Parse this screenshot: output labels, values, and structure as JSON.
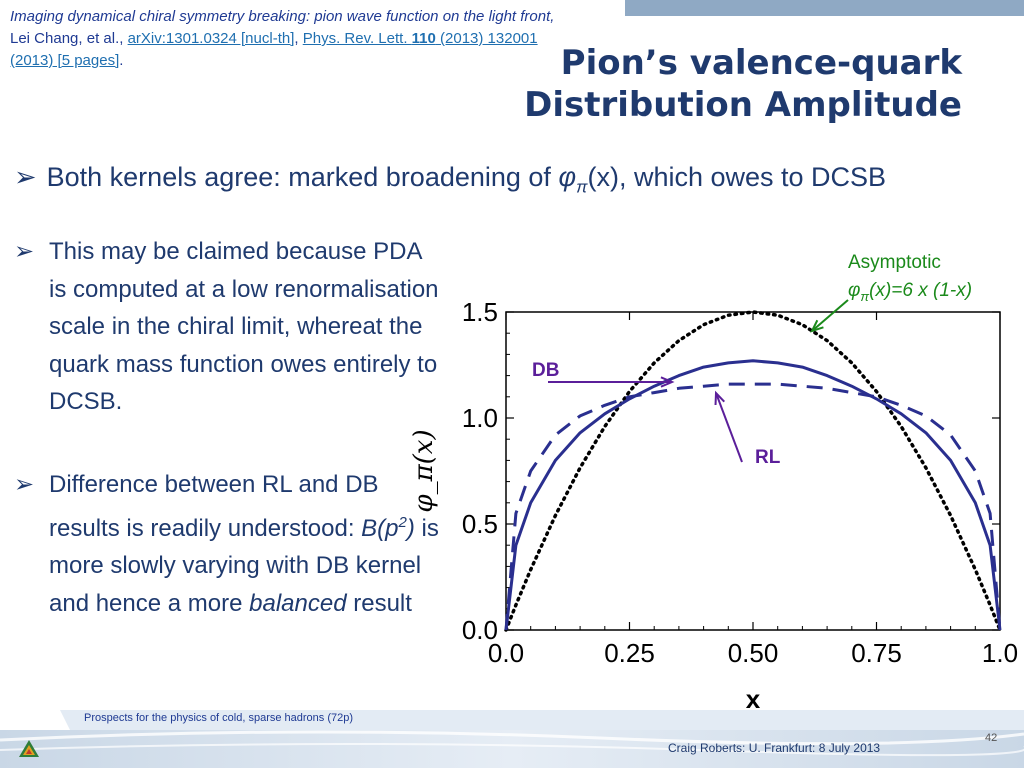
{
  "reference": {
    "title_italic": "Imaging dynamical chiral symmetry breaking: pion wave function on the light front,",
    "authors": " Lei Chang, et al.,",
    "arxiv": "arXiv:1301.0324 [nucl-th]",
    "prl_prefix": "Phys. Rev. Lett. ",
    "prl_volume": "110",
    "prl_rest": " (2013) 132001 (2013) [5 pages]"
  },
  "slide_title_line1": "Pion’s valence-quark",
  "slide_title_line2": "Distribution Amplitude",
  "bullet_main_pre": "Both kernels agree: marked broadening of ",
  "bullet_main_phi": "φ",
  "bullet_main_sub": "π",
  "bullet_main_post": "(x), which owes to DCSB",
  "bullet1": "This may be claimed because PDA is computed at a low renormalisation scale in the chiral limit, whereat the quark mass function owes entirely to DCSB.",
  "bullet2": {
    "part1": "Difference between RL and DB results is readily understood: ",
    "B": "B(p",
    "sup": "2",
    "close": ")",
    "part2": " is more slowly varying with DB kernel and hence a more ",
    "balanced": "balanced",
    "part3": " result"
  },
  "annotations": {
    "asym_line1": "Asymptotic",
    "asym_phi": "φ",
    "asym_sub": "π",
    "asym_formula": "(x)=6 x (1-x)",
    "db": "DB",
    "rl": "RL"
  },
  "footer": {
    "left": "Prospects for the physics of cold, sparse hadrons (72p)",
    "page": "42",
    "right": "Craig Roberts: U. Frankfurt: 8 July 2013"
  },
  "colors": {
    "curve": "#2a2f8f",
    "asymptotic": "#000000",
    "annotation_green": "#1b8a1b",
    "annotation_purple": "#5b1f9a"
  },
  "chart_data": {
    "type": "line",
    "xlabel": "x",
    "ylabel": "φ_π(x)",
    "xlim": [
      0,
      1
    ],
    "ylim": [
      0,
      1.5
    ],
    "xticks": [
      "0.0",
      "0.25",
      "0.50",
      "0.75",
      "1.0"
    ],
    "yticks": [
      "0.0",
      "0.5",
      "1.0",
      "1.5"
    ],
    "x": [
      0.0,
      0.02,
      0.05,
      0.1,
      0.15,
      0.2,
      0.25,
      0.3,
      0.35,
      0.4,
      0.45,
      0.5,
      0.55,
      0.6,
      0.65,
      0.7,
      0.75,
      0.8,
      0.85,
      0.9,
      0.95,
      0.98,
      1.0
    ],
    "series": [
      {
        "name": "Asymptotic",
        "style": "dotted",
        "values": [
          0.0,
          0.118,
          0.285,
          0.54,
          0.765,
          0.96,
          1.125,
          1.26,
          1.365,
          1.44,
          1.485,
          1.5,
          1.485,
          1.44,
          1.365,
          1.26,
          1.125,
          0.96,
          0.765,
          0.54,
          0.285,
          0.118,
          0.0
        ]
      },
      {
        "name": "RL",
        "style": "solid",
        "values": [
          0.0,
          0.4,
          0.6,
          0.8,
          0.93,
          1.02,
          1.09,
          1.15,
          1.2,
          1.24,
          1.26,
          1.27,
          1.26,
          1.24,
          1.2,
          1.15,
          1.09,
          1.02,
          0.93,
          0.8,
          0.6,
          0.4,
          0.0
        ]
      },
      {
        "name": "DB",
        "style": "dashed",
        "values": [
          0.0,
          0.55,
          0.75,
          0.92,
          1.01,
          1.06,
          1.1,
          1.12,
          1.14,
          1.15,
          1.16,
          1.16,
          1.16,
          1.15,
          1.14,
          1.12,
          1.1,
          1.06,
          1.01,
          0.92,
          0.75,
          0.55,
          0.0
        ]
      }
    ]
  }
}
